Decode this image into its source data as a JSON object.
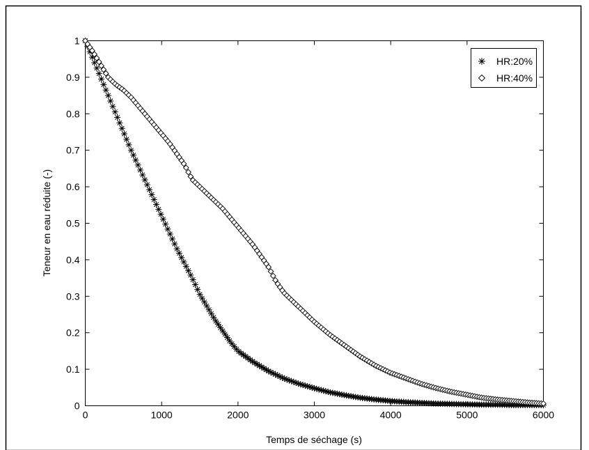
{
  "chart_data": {
    "type": "scatter",
    "title": "",
    "xlabel": "Temps de séchage (s)",
    "ylabel": "Teneur en eau réduite (-)",
    "xlim": [
      0,
      6000
    ],
    "ylim": [
      0,
      1
    ],
    "xticks": [
      0,
      1000,
      2000,
      3000,
      4000,
      5000,
      6000
    ],
    "yticks": [
      0,
      0.1,
      0.2,
      0.3,
      0.4,
      0.5,
      0.6,
      0.7,
      0.8,
      0.9,
      1
    ],
    "xtick_labels": [
      "0",
      "1000",
      "2000",
      "3000",
      "4000",
      "5000",
      "6000"
    ],
    "ytick_labels": [
      "0",
      "0.1",
      "0.2",
      "0.3",
      "0.4",
      "0.5",
      "0.6",
      "0.7",
      "0.8",
      "0.9",
      "1"
    ],
    "grid": false,
    "legend_position": "top-right",
    "series": [
      {
        "name": "HR:20%",
        "marker": "asterisk",
        "color": "#000000",
        "x": [
          0,
          100,
          200,
          300,
          400,
          500,
          600,
          700,
          800,
          900,
          1000,
          1100,
          1200,
          1300,
          1400,
          1500,
          1600,
          1700,
          1800,
          1900,
          2000,
          2200,
          2400,
          2600,
          2800,
          3000,
          3200,
          3400,
          3600,
          3800,
          4000,
          4200,
          4400,
          4600,
          4800,
          5000,
          5200,
          5400,
          5600,
          5800,
          6000
        ],
        "y": [
          1.0,
          0.95,
          0.9,
          0.85,
          0.8,
          0.75,
          0.7,
          0.655,
          0.61,
          0.565,
          0.52,
          0.475,
          0.43,
          0.39,
          0.35,
          0.305,
          0.27,
          0.235,
          0.205,
          0.175,
          0.15,
          0.12,
          0.095,
          0.075,
          0.06,
          0.048,
          0.037,
          0.029,
          0.022,
          0.017,
          0.013,
          0.01,
          0.008,
          0.006,
          0.005,
          0.004,
          0.003,
          0.003,
          0.002,
          0.002,
          0.002
        ]
      },
      {
        "name": "HR:40%",
        "marker": "diamond",
        "color": "#000000",
        "x": [
          0,
          100,
          200,
          300,
          400,
          500,
          600,
          700,
          800,
          900,
          1000,
          1100,
          1200,
          1300,
          1400,
          1500,
          1600,
          1700,
          1800,
          1900,
          2000,
          2100,
          2200,
          2300,
          2400,
          2500,
          2600,
          2700,
          2800,
          2900,
          3000,
          3200,
          3400,
          3600,
          3800,
          4000,
          4200,
          4400,
          4600,
          4800,
          5000,
          5200,
          5400,
          5600,
          5800,
          6000
        ],
        "y": [
          1.0,
          0.97,
          0.935,
          0.9,
          0.88,
          0.865,
          0.845,
          0.82,
          0.795,
          0.77,
          0.745,
          0.72,
          0.69,
          0.66,
          0.62,
          0.6,
          0.58,
          0.56,
          0.54,
          0.515,
          0.49,
          0.465,
          0.44,
          0.41,
          0.38,
          0.34,
          0.31,
          0.29,
          0.27,
          0.25,
          0.23,
          0.195,
          0.165,
          0.135,
          0.11,
          0.09,
          0.075,
          0.06,
          0.048,
          0.038,
          0.03,
          0.022,
          0.017,
          0.013,
          0.009,
          0.006
        ]
      }
    ]
  }
}
